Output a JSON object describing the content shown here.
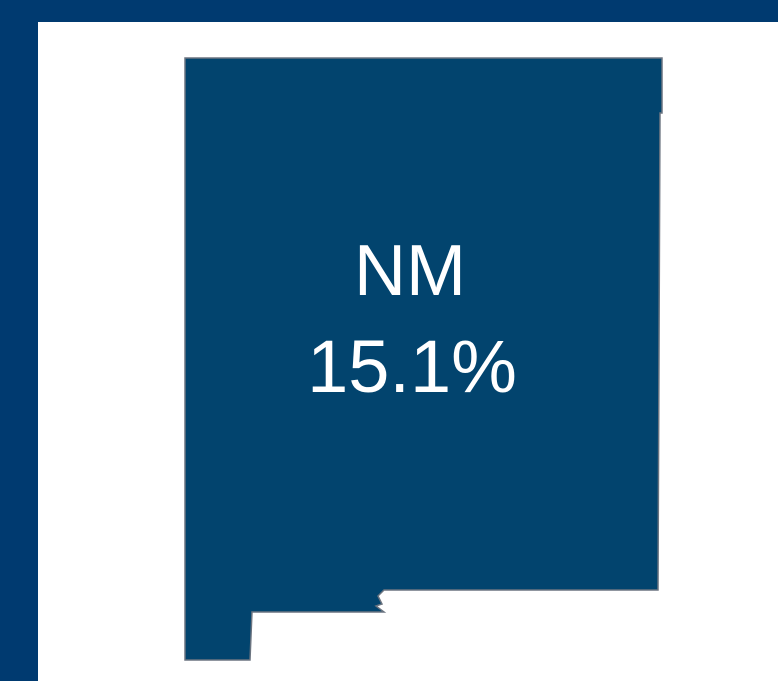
{
  "region": {
    "label": "NM",
    "value": "15.1%"
  }
}
